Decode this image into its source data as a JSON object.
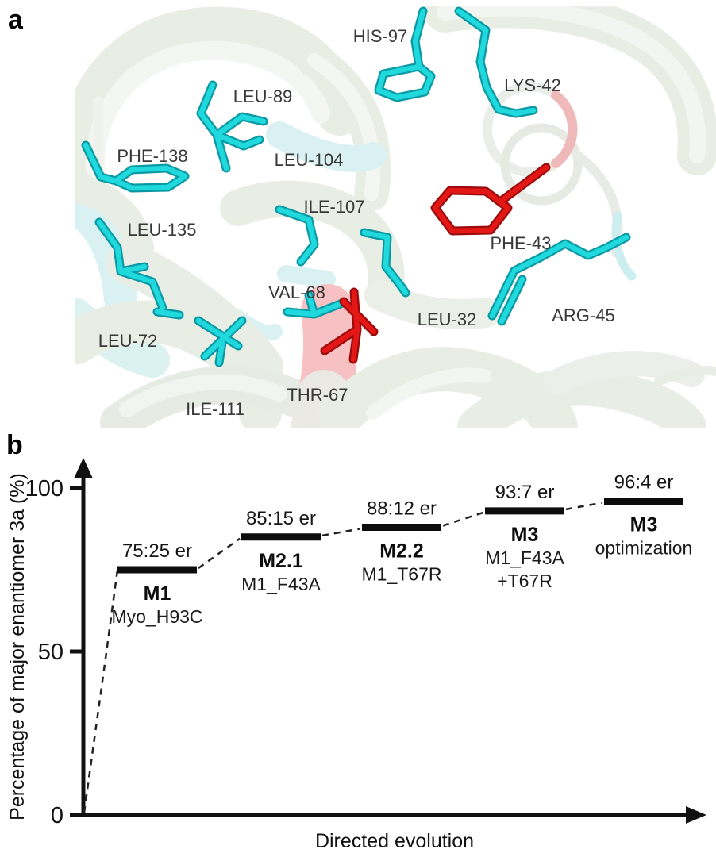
{
  "panels": {
    "a_tag": "a",
    "b_tag": "b"
  },
  "panel_a": {
    "residues": [
      {
        "label": "HIS-97",
        "highlight": "cyan"
      },
      {
        "label": "LYS-42",
        "highlight": "cyan"
      },
      {
        "label": "LEU-89",
        "highlight": "cyan"
      },
      {
        "label": "PHE-138",
        "highlight": "cyan"
      },
      {
        "label": "LEU-104",
        "highlight": "cyan"
      },
      {
        "label": "ILE-107",
        "highlight": "cyan"
      },
      {
        "label": "PHE-43",
        "highlight": "red"
      },
      {
        "label": "LEU-135",
        "highlight": "cyan"
      },
      {
        "label": "VAL-68",
        "highlight": "cyan"
      },
      {
        "label": "LEU-32",
        "highlight": "cyan"
      },
      {
        "label": "ARG-45",
        "highlight": "cyan"
      },
      {
        "label": "LEU-72",
        "highlight": "cyan"
      },
      {
        "label": "THR-67",
        "highlight": "red"
      },
      {
        "label": "ILE-111",
        "highlight": "cyan"
      }
    ],
    "colors": {
      "stick_cyan": "#1fd9dc",
      "stick_red": "#e41717",
      "ribbon_pale": "#e9eee5",
      "ribbon_cyan_tint": "#d9f1f3",
      "ribbon_red_tint": "#f7c0c2"
    }
  },
  "chart_data": {
    "type": "line",
    "title": "",
    "xlabel": "Directed evolution",
    "ylabel": "Percentage of major enantiomer 3a (%)",
    "ylim": [
      0,
      100
    ],
    "yticks": [
      0,
      50,
      100
    ],
    "grid": false,
    "legend": false,
    "line_style": "stepped plateaus connected by dashed segments",
    "steps": [
      {
        "name": "M1",
        "variant": [
          "Myo_H93C"
        ],
        "er": "75:25 er",
        "value": 75
      },
      {
        "name": "M2.1",
        "variant": [
          "M1_F43A"
        ],
        "er": "85:15 er",
        "value": 85
      },
      {
        "name": "M2.2",
        "variant": [
          "M1_T67R"
        ],
        "er": "88:12 er",
        "value": 88
      },
      {
        "name": "M3",
        "variant": [
          "M1_F43A",
          "+T67R"
        ],
        "er": "93:7 er",
        "value": 93
      },
      {
        "name": "M3",
        "variant": [
          "optimization"
        ],
        "er": "96:4 er",
        "value": 96
      }
    ]
  }
}
